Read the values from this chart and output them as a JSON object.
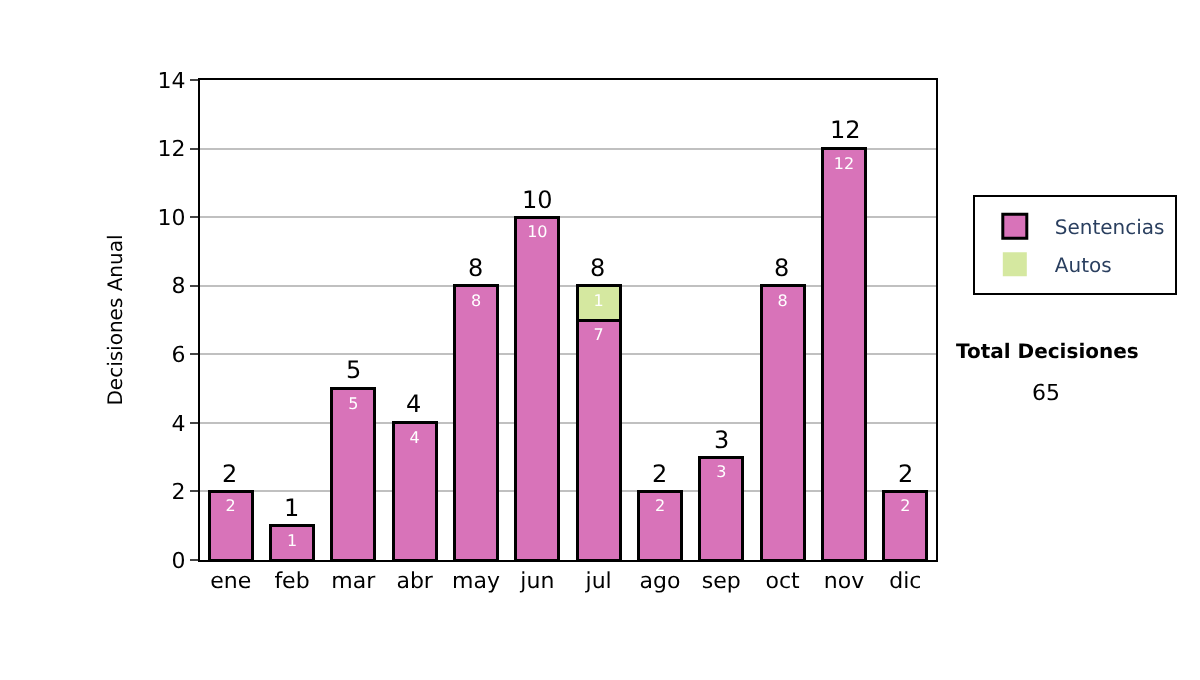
{
  "chart_data": {
    "type": "bar",
    "stacked": true,
    "ylabel": "Decisiones Anual",
    "categories": [
      "ene",
      "feb",
      "mar",
      "abr",
      "may",
      "jun",
      "jul",
      "ago",
      "sep",
      "oct",
      "nov",
      "dic"
    ],
    "series": [
      {
        "name": "Sentencias",
        "color": "#d873b9",
        "values": [
          2,
          1,
          5,
          4,
          8,
          10,
          7,
          2,
          3,
          8,
          12,
          2
        ],
        "value_labels": [
          "2",
          "1",
          "5",
          "4",
          "8",
          "10",
          "7",
          "2",
          "3",
          "8",
          "12",
          "2"
        ]
      },
      {
        "name": "Autos",
        "color": "#d5e8a0",
        "values": [
          0,
          0,
          0,
          0,
          0,
          0,
          1,
          0,
          0,
          0,
          0,
          0
        ],
        "value_labels": [
          null,
          null,
          null,
          null,
          null,
          null,
          "1",
          null,
          null,
          null,
          null,
          null
        ]
      }
    ],
    "totals": [
      "2",
      "1",
      "5",
      "4",
      "8",
      "10",
      "8",
      "2",
      "3",
      "8",
      "12",
      "2"
    ],
    "ylim": [
      0,
      14
    ],
    "yticks": [
      0,
      2,
      4,
      6,
      8,
      10,
      12,
      14
    ],
    "grid": "y",
    "legend": "right",
    "annotations": [
      "Total Decisiones",
      "65"
    ]
  }
}
